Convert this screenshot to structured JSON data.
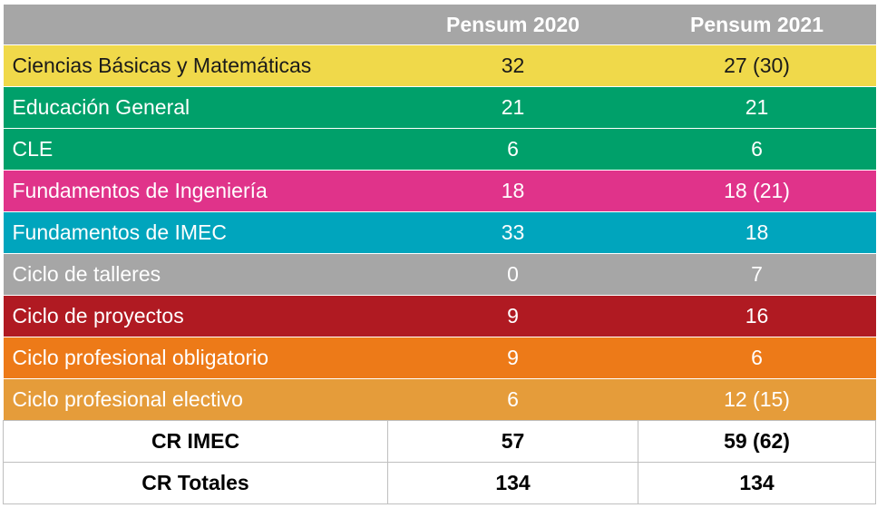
{
  "header": {
    "corner": "",
    "col2": "Pensum 2020",
    "col3": "Pensum 2021"
  },
  "rows": [
    {
      "label": "Ciencias Básicas y Matemáticas",
      "p2020": "32",
      "p2021": "27 (30)",
      "color": "#f0d94a",
      "text_color": "#1a1a1a"
    },
    {
      "label": "Educación General",
      "p2020": "21",
      "p2021": "21",
      "color": "#00a06a",
      "text_color": "#ffffff"
    },
    {
      "label": "CLE",
      "p2020": "6",
      "p2021": "6",
      "color": "#00a06a",
      "text_color": "#ffffff"
    },
    {
      "label": "Fundamentos de Ingeniería",
      "p2020": "18",
      "p2021": "18 (21)",
      "color": "#e0338a",
      "text_color": "#ffffff"
    },
    {
      "label": "Fundamentos de IMEC",
      "p2020": "33",
      "p2021": "18",
      "color": "#00a5bd",
      "text_color": "#ffffff"
    },
    {
      "label": "Ciclo de talleres",
      "p2020": "0",
      "p2021": "7",
      "color": "#a6a6a6",
      "text_color": "#ffffff"
    },
    {
      "label": "Ciclo de proyectos",
      "p2020": "9",
      "p2021": "16",
      "color": "#b01a22",
      "text_color": "#ffffff"
    },
    {
      "label": "Ciclo profesional obligatorio",
      "p2020": "9",
      "p2021": "6",
      "color": "#ed7a18",
      "text_color": "#ffffff"
    },
    {
      "label": "Ciclo profesional electivo",
      "p2020": "6",
      "p2021": "12 (15)",
      "color": "#e59c3a",
      "text_color": "#ffffff"
    }
  ],
  "totals": [
    {
      "label": "CR IMEC",
      "p2020": "57",
      "p2021": "59 (62)"
    },
    {
      "label": "CR Totales",
      "p2020": "134",
      "p2021": "134"
    }
  ]
}
